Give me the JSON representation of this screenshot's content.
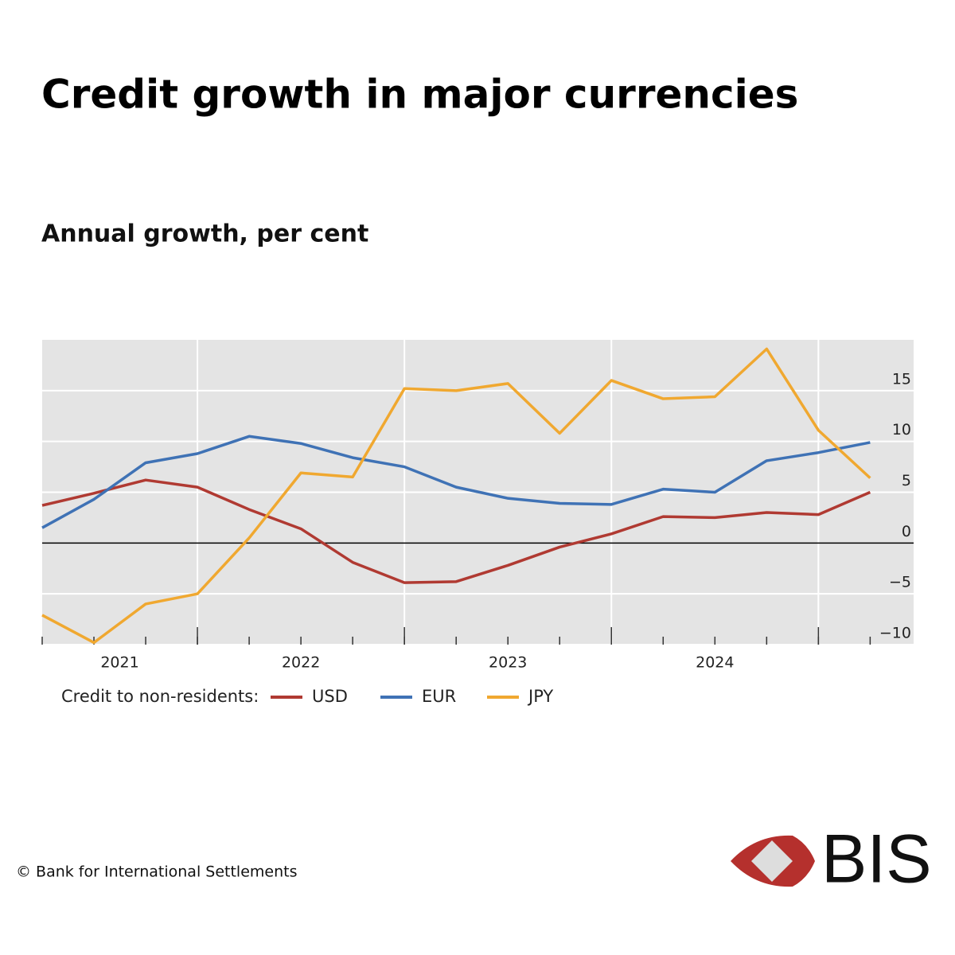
{
  "chart_data": {
    "type": "line",
    "title": "Credit growth in major currencies",
    "subtitle": "Annual growth, per cent",
    "legend_title": "Credit to non-residents:",
    "footer": "© Bank for International Settlements",
    "logo": "BIS",
    "x": [
      2021.25,
      2021.5,
      2021.75,
      2022,
      2022.25,
      2022.5,
      2022.75,
      2023,
      2023.25,
      2023.5,
      2023.75,
      2024,
      2024.25,
      2024.5,
      2024.75,
      2025,
      2025.25
    ],
    "xlim": [
      2021.25,
      2025.46
    ],
    "xticks": [
      {
        "value": 2021,
        "label": "2021"
      },
      {
        "value": 2022,
        "label": "2022"
      },
      {
        "value": 2023,
        "label": "2023"
      },
      {
        "value": 2024,
        "label": "2024"
      }
    ],
    "ylim": [
      -10,
      20
    ],
    "yticks": [
      {
        "value": -10,
        "label": "−10"
      },
      {
        "value": -5,
        "label": "−5"
      },
      0,
      5,
      10,
      15
    ],
    "grid": true,
    "series": [
      {
        "name": "USD",
        "color": "#b03a32",
        "values": [
          3.7,
          4.9,
          6.2,
          5.5,
          3.3,
          1.4,
          -1.9,
          -3.9,
          -3.8,
          -2.2,
          -0.4,
          0.9,
          2.6,
          2.5,
          3.0,
          2.8,
          5.0
        ]
      },
      {
        "name": "EUR",
        "color": "#3f72b5",
        "values": [
          1.5,
          4.3,
          7.9,
          8.8,
          10.5,
          9.8,
          8.4,
          7.5,
          5.5,
          4.4,
          3.9,
          3.8,
          5.3,
          5.0,
          8.1,
          8.9,
          9.9
        ]
      },
      {
        "name": "JPY",
        "color": "#f0a830",
        "values": [
          -7.1,
          -9.8,
          -6.0,
          -5.0,
          0.5,
          6.9,
          6.5,
          15.2,
          15.0,
          15.7,
          10.8,
          16.0,
          14.2,
          14.4,
          19.1,
          11.1,
          6.4
        ]
      }
    ]
  }
}
